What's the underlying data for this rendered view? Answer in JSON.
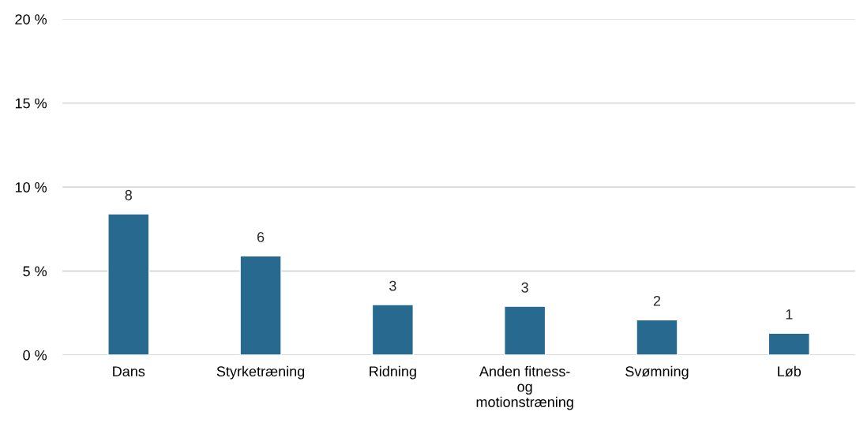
{
  "chart_data": {
    "type": "bar",
    "categories": [
      "Dans",
      "Styrketræning",
      "Ridning",
      "Anden fitness-\nog\nmotionstræning",
      "Svømning",
      "Løb"
    ],
    "values": [
      8.4,
      5.9,
      3.0,
      2.9,
      2.1,
      1.3
    ],
    "value_labels": [
      "8",
      "6",
      "3",
      "3",
      "2",
      "1"
    ],
    "color": "#27698f",
    "ylim": [
      0,
      20
    ],
    "yticks": [
      {
        "value": 0,
        "label": "0 %"
      },
      {
        "value": 5,
        "label": "5 %"
      },
      {
        "value": 10,
        "label": "10 %"
      },
      {
        "value": 15,
        "label": "15 %"
      },
      {
        "value": 20,
        "label": "20 %"
      }
    ],
    "grid": "y",
    "legend": false
  }
}
